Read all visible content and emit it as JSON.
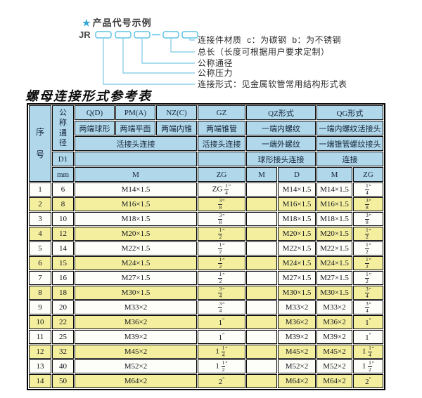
{
  "diagram": {
    "star": "★",
    "heading": "产品代号示例",
    "code_prefix": "JR",
    "box_count": 5,
    "labels": [
      "连接件材质  c：为碳钢  b：为不锈钢",
      "总长（长度可根据用户要求定制）",
      "公称通径",
      "公称压力",
      "连接形式：见金属软管常用结构形式表"
    ],
    "colors": {
      "star": "#2fa8d8",
      "box_border": "#5fc3e4",
      "connector_line": "#8fd0e8"
    }
  },
  "table": {
    "title": "螺母连接形式参考表",
    "colors": {
      "header_bg": "#b0d7ea",
      "row_bg": "#fdfdf9",
      "row_alt_bg": "#f4ef9f",
      "border": "#000000"
    },
    "header": {
      "serial_label": "序号",
      "diameter_label": "公称通径",
      "d1_label": "D1",
      "unit_label": "mm",
      "form_labels": [
        "Q(D)",
        "PM(A)",
        "NZ(C)",
        "GZ",
        "QZ形式",
        "QG形式"
      ],
      "end_type_labels": [
        "两端球形",
        "两端平面",
        "两端内锥",
        "两端锥管",
        "一端内螺纹",
        "一端内螺纹活接头"
      ],
      "connection_labels": [
        "活接头连接",
        "活接头连接",
        "一端外螺纹",
        "一端锥管螺纹接头"
      ],
      "joint_labels": [
        "球形接头连接",
        "连接"
      ],
      "thread_labels": [
        "M",
        "ZG",
        "M",
        "D",
        "M",
        "ZG"
      ]
    },
    "rows": [
      [
        "1",
        "6",
        "M14×1.5",
        "ZG 1/4″",
        "",
        "M14×1.5",
        "M14×1.5",
        "1/4″"
      ],
      [
        "2",
        "8",
        "M16×1.5",
        "3/8″",
        "",
        "M16×1.5",
        "M16×1.5",
        "3/8″"
      ],
      [
        "3",
        "10",
        "M18×1.5",
        "3/8″",
        "",
        "M18×1.5",
        "M18×1.5",
        "3/8″"
      ],
      [
        "4",
        "12",
        "M20×1.5",
        "1/2″",
        "",
        "M20×1.5",
        "M20×1.5",
        "1/2″"
      ],
      [
        "5",
        "14",
        "M22×1.5",
        "1/2″",
        "",
        "M22×1.5",
        "M22×1.5",
        "1/2″"
      ],
      [
        "6",
        "15",
        "M24×1.5",
        "1/2″",
        "",
        "M24×1.5",
        "M24×1.5",
        "1/2″"
      ],
      [
        "7",
        "16",
        "M27×1.5",
        "1/2″",
        "",
        "M27×1.5",
        "M27×1.5",
        "1/2″"
      ],
      [
        "8",
        "18",
        "M30×1.5",
        "3/4″",
        "",
        "M30×1.5",
        "M30×1.5",
        "3/4″"
      ],
      [
        "9",
        "20",
        "M33×2",
        "3/4″",
        "",
        "M33×2",
        "M33×2",
        "3/4″"
      ],
      [
        "10",
        "22",
        "M36×2",
        "1″",
        "",
        "M36×2",
        "M36×2",
        "1″"
      ],
      [
        "11",
        "25",
        "M39×2",
        "1″",
        "",
        "M39×2",
        "M39×2",
        "1″"
      ],
      [
        "12",
        "32",
        "M45×2",
        "1 1/4″",
        "",
        "M45×2",
        "M45×2",
        "1 1/4″"
      ],
      [
        "13",
        "40",
        "M52×2",
        "1 1/2″",
        "",
        "M52×2",
        "M52×2",
        "1 1/2″"
      ],
      [
        "14",
        "50",
        "M64×2",
        "2″",
        "",
        "M64×2",
        "M64×2",
        "2″"
      ]
    ]
  }
}
